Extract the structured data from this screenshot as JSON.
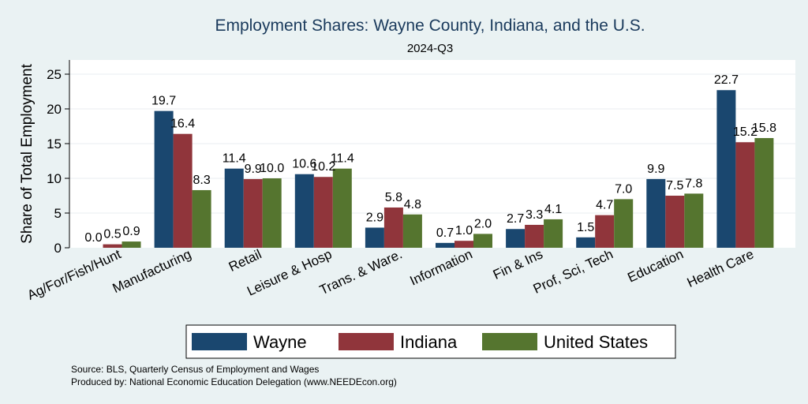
{
  "chart_data": {
    "type": "bar",
    "title": "Employment Shares: Wayne County, Indiana, and the U.S.",
    "subtitle": "2024-Q3",
    "xlabel": "",
    "ylabel": "Share of Total Employment",
    "ylim": [
      0,
      27
    ],
    "yticks": [
      0,
      5,
      10,
      15,
      20,
      25
    ],
    "grid": true,
    "legend_position": "bottom",
    "categories": [
      "Ag/For/Fish/Hunt",
      "Manufacturing",
      "Retail",
      "Leisure & Hosp",
      "Trans. & Ware.",
      "Information",
      "Fin & Ins",
      "Prof, Sci, Tech",
      "Education",
      "Health Care"
    ],
    "series": [
      {
        "name": "Wayne",
        "color": "#1a476f",
        "values": [
          0.0,
          19.7,
          11.4,
          10.6,
          2.9,
          0.7,
          2.7,
          1.5,
          9.9,
          22.7
        ],
        "labels": [
          "0.0",
          "19.7",
          "11.4",
          "10.6",
          "2.9",
          "0.7",
          "2.7",
          "1.5",
          "9.9",
          "22.7"
        ]
      },
      {
        "name": "Indiana",
        "color": "#90353b",
        "values": [
          0.5,
          16.4,
          9.9,
          10.2,
          5.8,
          1.0,
          3.3,
          4.7,
          7.5,
          15.2
        ],
        "labels": [
          "0.5",
          "16.4",
          "9.9",
          "10.2",
          "5.8",
          "1.0",
          "3.3",
          "4.7",
          "7.5",
          "15.2"
        ]
      },
      {
        "name": "United States",
        "color": "#55752f",
        "values": [
          0.9,
          8.3,
          10.0,
          11.4,
          4.8,
          2.0,
          4.1,
          7.0,
          7.8,
          15.8
        ],
        "labels": [
          "0.9",
          "8.3",
          "10.0",
          "11.4",
          "4.8",
          "2.0",
          "4.1",
          "7.0",
          "7.8",
          "15.8"
        ]
      }
    ]
  },
  "footer": {
    "source": "Source: BLS, Quarterly Census of Employment and Wages",
    "produced": "Produced by: National Economic Education Delegation (www.NEEDEcon.org)"
  }
}
